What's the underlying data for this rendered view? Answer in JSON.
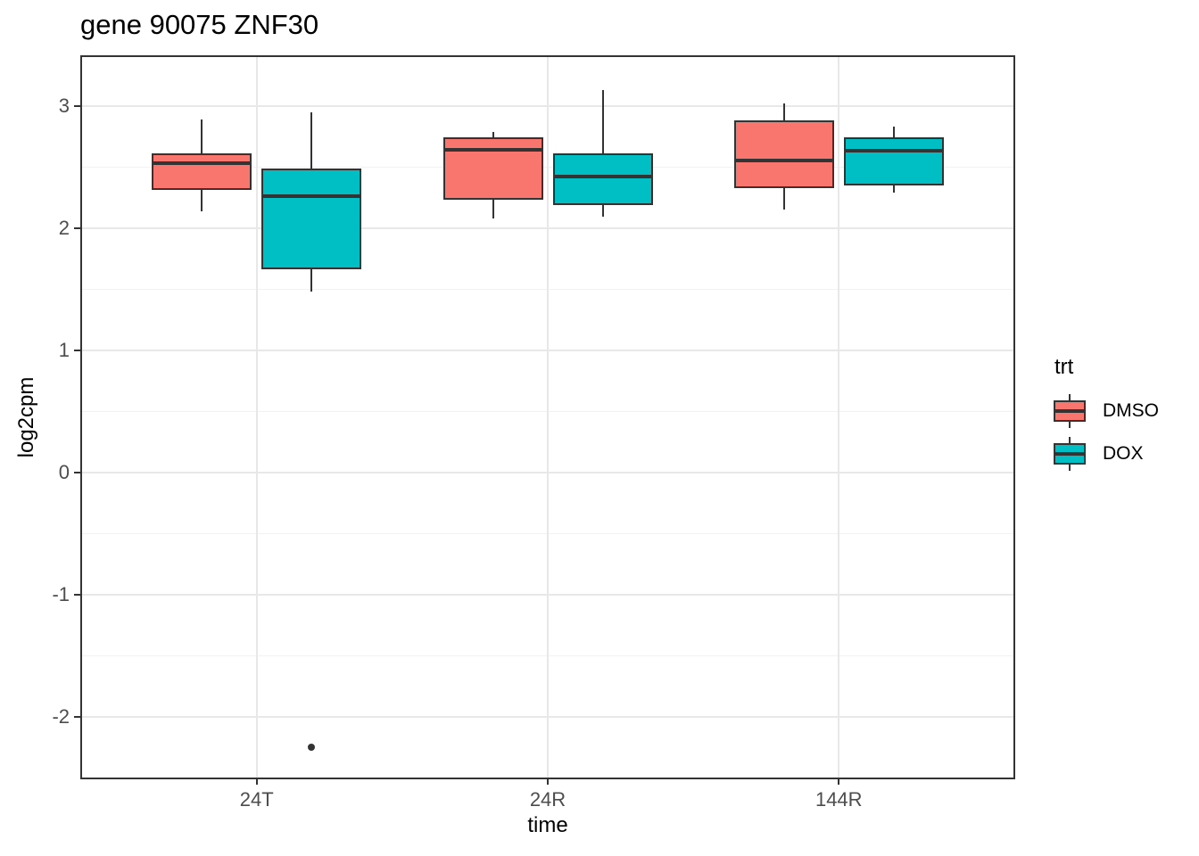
{
  "chart_data": {
    "type": "boxplot",
    "title": "gene 90075 ZNF30",
    "xlabel": "time",
    "ylabel": "log2cpm",
    "categories": [
      "24T",
      "24R",
      "144R"
    ],
    "y_ticks": [
      3,
      2,
      1,
      0,
      -1,
      -2
    ],
    "y_minor_ticks": [
      2.5,
      1.5,
      0.5,
      -0.5,
      -1.5
    ],
    "ylim": [
      -2.5,
      3.4
    ],
    "grid": true,
    "legend_position": "right",
    "series": [
      {
        "name": "DMSO",
        "color": "#F8766D",
        "boxes": [
          {
            "category": "24T",
            "whisker_low": 2.14,
            "q1": 2.31,
            "median": 2.53,
            "q3": 2.61,
            "whisker_high": 2.89
          },
          {
            "category": "24R",
            "whisker_low": 2.08,
            "q1": 2.23,
            "median": 2.64,
            "q3": 2.74,
            "whisker_high": 2.79
          },
          {
            "category": "144R",
            "whisker_low": 2.15,
            "q1": 2.33,
            "median": 2.55,
            "q3": 2.88,
            "whisker_high": 3.02
          }
        ]
      },
      {
        "name": "DOX",
        "color": "#00BFC4",
        "boxes": [
          {
            "category": "24T",
            "whisker_low": 1.48,
            "q1": 1.66,
            "median": 2.26,
            "q3": 2.49,
            "whisker_high": 2.95
          },
          {
            "category": "24R",
            "whisker_low": 2.09,
            "q1": 2.19,
            "median": 2.42,
            "q3": 2.61,
            "whisker_high": 3.13
          },
          {
            "category": "144R",
            "whisker_low": 2.29,
            "q1": 2.35,
            "median": 2.63,
            "q3": 2.74,
            "whisker_high": 2.83
          }
        ]
      }
    ],
    "outliers": [
      {
        "series": "DOX",
        "category": "24T",
        "value": -2.25
      }
    ],
    "legend": {
      "title": "trt",
      "entries": [
        {
          "label": "DMSO",
          "color": "#F8766D"
        },
        {
          "label": "DOX",
          "color": "#00BFC4"
        }
      ]
    },
    "colors": {
      "box_outline": "#333333",
      "grid_major": "#E8E8E8",
      "grid_minor": "#F2F2F2",
      "tick_label": "#4D4D4D",
      "axis_text": "#000000",
      "panel_border": "#333333"
    }
  }
}
